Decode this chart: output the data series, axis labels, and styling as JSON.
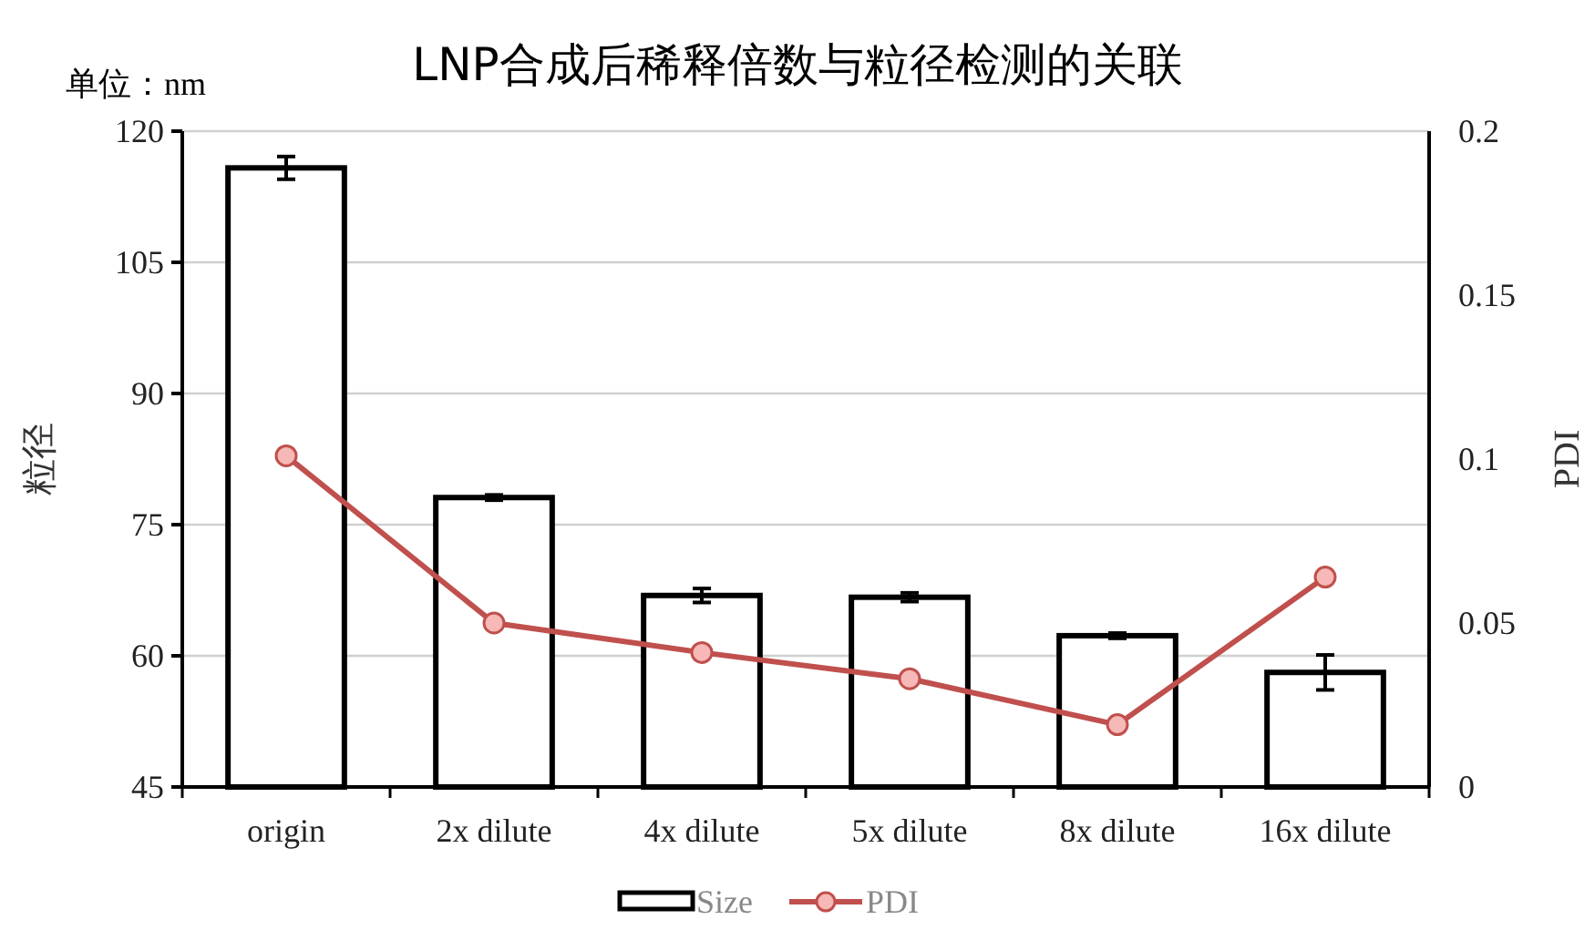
{
  "chart_data": {
    "type": "bar",
    "title": "LNP合成后稀释倍数与粒径检测的关联",
    "ylabel": "粒径",
    "y2label": "PDI",
    "annotations": [
      "单位：nm"
    ],
    "categories": [
      "origin",
      "2x dilute",
      "4x dilute",
      "5x dilute",
      "8x dilute",
      "16x dilute"
    ],
    "series": [
      {
        "name": "Size",
        "color": "#ffffff",
        "values": [
          115.8,
          78.1,
          66.9,
          66.7,
          62.3,
          58.1
        ],
        "errors": [
          1.3,
          0.3,
          0.8,
          0.5,
          0.3,
          2.0
        ]
      },
      {
        "name": "PDI",
        "type": "line",
        "axis": "y2",
        "color": "#c0504d",
        "marker": "circle",
        "values": [
          0.101,
          0.05,
          0.041,
          0.033,
          0.019,
          0.064
        ]
      }
    ],
    "ylim": [
      45,
      120
    ],
    "yticks": [
      45,
      60,
      75,
      90,
      105,
      120
    ],
    "y2lim": [
      0,
      0.2
    ],
    "y2ticks": [
      0,
      0.05,
      0.1,
      0.15,
      0.2
    ],
    "grid": "y",
    "legend": "bottom"
  }
}
